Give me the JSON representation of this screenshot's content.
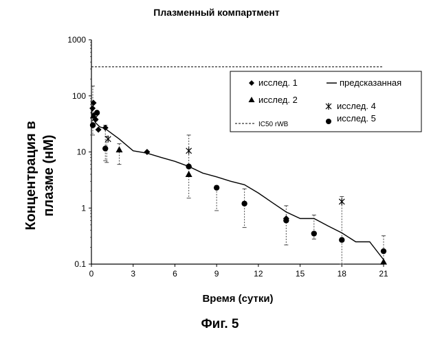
{
  "figure": {
    "caption": "Фиг. 5"
  },
  "chart_data": {
    "type": "scatter",
    "title": "Плазменный компартмент",
    "xlabel": "Время (сутки)",
    "ylabel_lines": [
      "Концентрация в",
      "плазме (нМ)"
    ],
    "xlim": [
      0,
      21
    ],
    "ylim": [
      0.1,
      1000
    ],
    "yscale": "log",
    "grid": false,
    "legend_position": "top-right",
    "x_ticks": [
      0,
      3,
      6,
      9,
      12,
      15,
      18,
      21
    ],
    "y_ticks": [
      {
        "value": 0.1,
        "label": "0.1"
      },
      {
        "value": 1,
        "label": "1"
      },
      {
        "value": 10,
        "label": "10"
      },
      {
        "value": 100,
        "label": "100"
      },
      {
        "value": 1000,
        "label": "1000"
      }
    ],
    "legend": {
      "s1": "исслед. 1",
      "s2": "исслед. 2",
      "s4": "исслед. 4",
      "s5": "исслед. 5",
      "pred": "предсказанная",
      "ic50": "IC50 rWB"
    },
    "ic50": {
      "value": 330,
      "x_range": [
        0,
        21
      ]
    },
    "predicted": {
      "x": [
        0,
        0.1,
        0.3,
        0.6,
        1,
        1.5,
        2,
        3,
        4,
        5,
        6,
        7,
        8,
        9,
        10,
        11,
        12,
        13,
        14,
        15,
        16,
        17,
        18,
        19,
        20,
        21
      ],
      "y": [
        55,
        40,
        33,
        28,
        26,
        21,
        17,
        10.5,
        9.5,
        8,
        6.8,
        5.5,
        4.2,
        3.6,
        3.0,
        2.6,
        1.85,
        1.25,
        0.85,
        0.65,
        0.65,
        0.48,
        0.36,
        0.25,
        0.25,
        0.12
      ]
    },
    "series": [
      {
        "name": "исслед. 1",
        "marker": "diamond",
        "points": [
          [
            0.08,
            60
          ],
          [
            0.15,
            75
          ],
          [
            0.3,
            38
          ],
          [
            0.5,
            25
          ],
          [
            1,
            27
          ],
          [
            4,
            10
          ],
          [
            7,
            5.5
          ],
          [
            14,
            0.65
          ]
        ]
      },
      {
        "name": "исслед. 2",
        "marker": "triangle",
        "points": [
          [
            0.15,
            45
          ],
          [
            2,
            11
          ],
          [
            7,
            4
          ],
          [
            21,
            0.11
          ]
        ]
      },
      {
        "name": "исслед. 4",
        "marker": "star",
        "points": [
          [
            0.25,
            40
          ],
          [
            1.2,
            17
          ],
          [
            7,
            10.5
          ],
          [
            18,
            1.3
          ]
        ]
      },
      {
        "name": "исслед. 5",
        "marker": "circle",
        "points": [
          [
            0.1,
            30
          ],
          [
            0.4,
            50
          ],
          [
            1,
            11.5
          ],
          [
            7,
            5.5
          ],
          [
            9,
            2.3
          ],
          [
            11,
            1.2
          ],
          [
            14,
            0.6
          ],
          [
            16,
            0.35
          ],
          [
            18,
            0.27
          ],
          [
            21,
            0.17
          ]
        ]
      }
    ],
    "error_bars": [
      {
        "x": 0.1,
        "low": 20,
        "high": 150
      },
      {
        "x": 1,
        "low": 7,
        "high": 30
      },
      {
        "x": 1.1,
        "low": 6.5,
        "high": 19
      },
      {
        "x": 2,
        "low": 6,
        "high": 14
      },
      {
        "x": 7,
        "low": 1.5,
        "high": 20
      },
      {
        "x": 9,
        "low": 0.9,
        "high": 2.5
      },
      {
        "x": 11,
        "low": 0.45,
        "high": 2.2
      },
      {
        "x": 14,
        "low": 0.22,
        "high": 1.1
      },
      {
        "x": 16,
        "low": 0.28,
        "high": 0.75
      },
      {
        "x": 18,
        "low": 0.1,
        "high": 1.6
      },
      {
        "x": 21,
        "low": 0.1,
        "high": 0.32
      }
    ]
  }
}
